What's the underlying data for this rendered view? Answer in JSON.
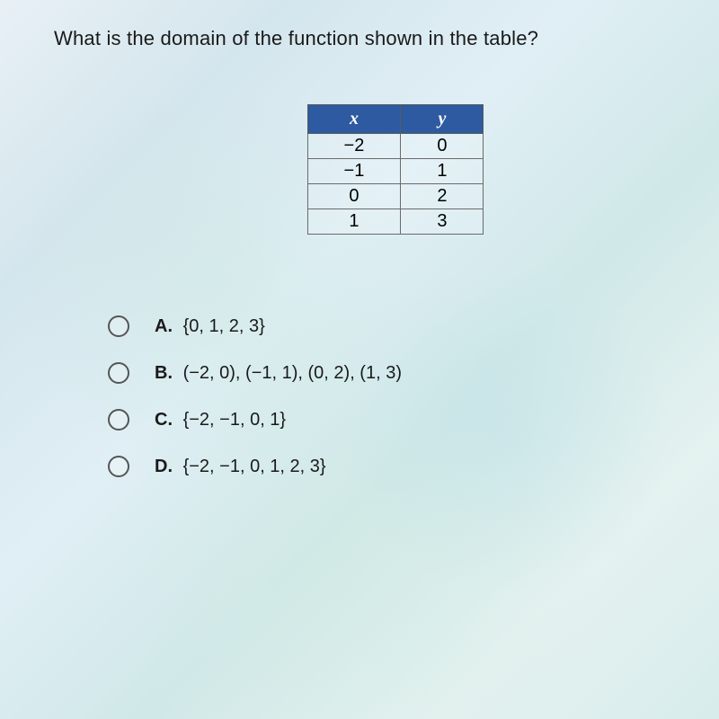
{
  "question": "What is the domain of the function shown in the table?",
  "table": {
    "headers": {
      "col1": "x",
      "col2": "y"
    },
    "rows": [
      {
        "x": "−2",
        "y": "0"
      },
      {
        "x": "−1",
        "y": "1"
      },
      {
        "x": "0",
        "y": "2"
      },
      {
        "x": "1",
        "y": "3"
      }
    ],
    "header_bg_color": "#2d5aa0",
    "header_text_color": "#ffffff",
    "border_color": "#6a6a6a"
  },
  "options": [
    {
      "letter": "A.",
      "text": "{0, 1, 2, 3}"
    },
    {
      "letter": "B.",
      "text": "(−2, 0), (−1, 1), (0, 2), (1, 3)"
    },
    {
      "letter": "C.",
      "text": "{−2, −1, 0, 1}"
    },
    {
      "letter": "D.",
      "text": "{−2, −1, 0, 1, 2, 3}"
    }
  ]
}
